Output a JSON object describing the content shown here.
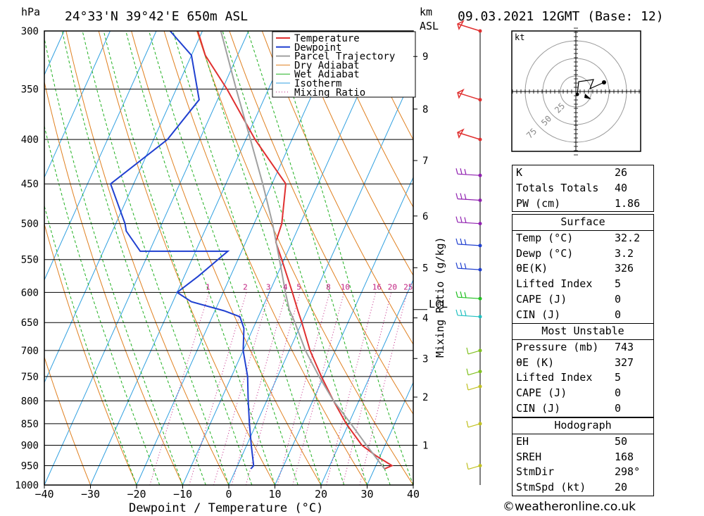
{
  "header": {
    "location": "24°33'N 39°42'E 650m ASL",
    "datetime": "09.03.2021 12GMT (Base: 12)",
    "left_unit": "hPa",
    "right_unit_km": "km",
    "right_unit_asl": "ASL"
  },
  "chart_data": {
    "type": "line",
    "title": "24°33'N 39°42'E 650m ASL",
    "xlabel": "Dewpoint / Temperature (°C)",
    "ylabel": "hPa",
    "right_axis_label": "Mixing Ratio (g/kg)",
    "xlim": [
      -40,
      40
    ],
    "ylim": [
      1000,
      300
    ],
    "skew": "skew-T log-p",
    "x_ticks": [
      -40,
      -30,
      -20,
      -10,
      0,
      10,
      20,
      30,
      40
    ],
    "pressure_levels": [
      300,
      350,
      400,
      450,
      500,
      550,
      600,
      650,
      700,
      750,
      800,
      850,
      900,
      950,
      1000
    ],
    "km_ticks": [
      {
        "km": 1,
        "p": 900
      },
      {
        "km": 2,
        "p": 792
      },
      {
        "km": 3,
        "p": 715
      },
      {
        "km": 4,
        "p": 642
      },
      {
        "km": 5,
        "p": 562
      },
      {
        "km": 6,
        "p": 490
      },
      {
        "km": 7,
        "p": 423
      },
      {
        "km": 8,
        "p": 369
      },
      {
        "km": 9,
        "p": 321
      }
    ],
    "mixing_ratio_labels": [
      "1",
      "2",
      "3",
      "4",
      "5",
      "8",
      "10",
      "16",
      "20",
      "25"
    ],
    "lcl_label": "LCL",
    "lcl_pressure": 628,
    "legend": [
      "Temperature",
      "Dewpoint",
      "Parcel Trajectory",
      "Dry Adiabat",
      "Wet Adiabat",
      "Isotherm",
      "Mixing Ratio"
    ],
    "legend_position": "top-right",
    "series": [
      {
        "name": "Temperature",
        "color": "#e03030",
        "points": [
          [
            958,
            32.2
          ],
          [
            950,
            33.5
          ],
          [
            925,
            29
          ],
          [
            900,
            25
          ],
          [
            850,
            19.5
          ],
          [
            800,
            14.5
          ],
          [
            750,
            9.5
          ],
          [
            700,
            4.5
          ],
          [
            650,
            0
          ],
          [
            630,
            -2
          ],
          [
            600,
            -5
          ],
          [
            550,
            -10.5
          ],
          [
            525,
            -13.5
          ],
          [
            500,
            -14
          ],
          [
            450,
            -17
          ],
          [
            400,
            -28
          ],
          [
            350,
            -39
          ],
          [
            320,
            -47
          ],
          [
            300,
            -51
          ]
        ]
      },
      {
        "name": "Dewpoint",
        "color": "#2040d0",
        "points": [
          [
            958,
            3.2
          ],
          [
            950,
            3.5
          ],
          [
            900,
            1
          ],
          [
            850,
            -1.5
          ],
          [
            800,
            -4
          ],
          [
            750,
            -6.5
          ],
          [
            700,
            -10
          ],
          [
            660,
            -12
          ],
          [
            640,
            -14
          ],
          [
            630,
            -18
          ],
          [
            615,
            -26
          ],
          [
            600,
            -30
          ],
          [
            575,
            -27
          ],
          [
            538,
            -23
          ],
          [
            538,
            -42
          ],
          [
            510,
            -47
          ],
          [
            500,
            -48
          ],
          [
            450,
            -55
          ],
          [
            400,
            -47
          ],
          [
            360,
            -44
          ],
          [
            320,
            -50
          ],
          [
            300,
            -57
          ]
        ]
      },
      {
        "name": "Parcel Trajectory",
        "color": "#a0a0a0",
        "points": [
          [
            958,
            32.2
          ],
          [
            900,
            26
          ],
          [
            850,
            20.5
          ],
          [
            800,
            14.5
          ],
          [
            750,
            9
          ],
          [
            700,
            3.5
          ],
          [
            650,
            -1.5
          ],
          [
            628,
            -4
          ],
          [
            600,
            -6.5
          ],
          [
            550,
            -11
          ],
          [
            500,
            -16
          ],
          [
            450,
            -22
          ],
          [
            400,
            -29
          ],
          [
            350,
            -37
          ],
          [
            300,
            -46
          ]
        ]
      }
    ],
    "wind_barbs": [
      {
        "p": 300,
        "color": "#e03030"
      },
      {
        "p": 360,
        "color": "#e03030"
      },
      {
        "p": 400,
        "color": "#e03030"
      },
      {
        "p": 440,
        "color": "#9020b0"
      },
      {
        "p": 470,
        "color": "#9020b0"
      },
      {
        "p": 500,
        "color": "#9020b0"
      },
      {
        "p": 530,
        "color": "#2040d0"
      },
      {
        "p": 565,
        "color": "#2040d0"
      },
      {
        "p": 610,
        "color": "#20c020"
      },
      {
        "p": 640,
        "color": "#20c0c0"
      },
      {
        "p": 700,
        "color": "#80c020"
      },
      {
        "p": 740,
        "color": "#80c020"
      },
      {
        "p": 770,
        "color": "#c0c020"
      },
      {
        "p": 850,
        "color": "#c0c020"
      },
      {
        "p": 950,
        "color": "#c0c020"
      }
    ]
  },
  "hodograph": {
    "unit": "kt",
    "ring_labels": [
      "25",
      "50",
      "75"
    ]
  },
  "indices": {
    "rows": [
      {
        "label": "K",
        "value": "26"
      },
      {
        "label": "Totals Totals",
        "value": "40"
      },
      {
        "label": "PW (cm)",
        "value": "1.86"
      }
    ]
  },
  "surface": {
    "title": "Surface",
    "rows": [
      {
        "label": "Temp (°C)",
        "value": "32.2"
      },
      {
        "label": "Dewp (°C)",
        "value": "3.2"
      },
      {
        "label": "θE(K)",
        "value": "326"
      },
      {
        "label": "Lifted Index",
        "value": "5"
      },
      {
        "label": "CAPE (J)",
        "value": "0"
      },
      {
        "label": "CIN (J)",
        "value": "0"
      }
    ]
  },
  "most_unstable": {
    "title": "Most Unstable",
    "rows": [
      {
        "label": "Pressure (mb)",
        "value": "743"
      },
      {
        "label": "θE (K)",
        "value": "327"
      },
      {
        "label": "Lifted Index",
        "value": "5"
      },
      {
        "label": "CAPE (J)",
        "value": "0"
      },
      {
        "label": "CIN (J)",
        "value": "0"
      }
    ]
  },
  "hodograph_table": {
    "title": "Hodograph",
    "rows": [
      {
        "label": "EH",
        "value": "50"
      },
      {
        "label": "SREH",
        "value": "168"
      },
      {
        "label": "StmDir",
        "value": "298°"
      },
      {
        "label": "StmSpd (kt)",
        "value": "20"
      }
    ]
  },
  "footer": "©weatheronline.co.uk",
  "colors": {
    "temperature": "#e03030",
    "dewpoint": "#2040d0",
    "parcel": "#a0a0a0",
    "dry_adiabat": "#e08020",
    "wet_adiabat": "#20b020",
    "isotherm": "#30a0e0",
    "mixing_ratio": "#c02080"
  }
}
